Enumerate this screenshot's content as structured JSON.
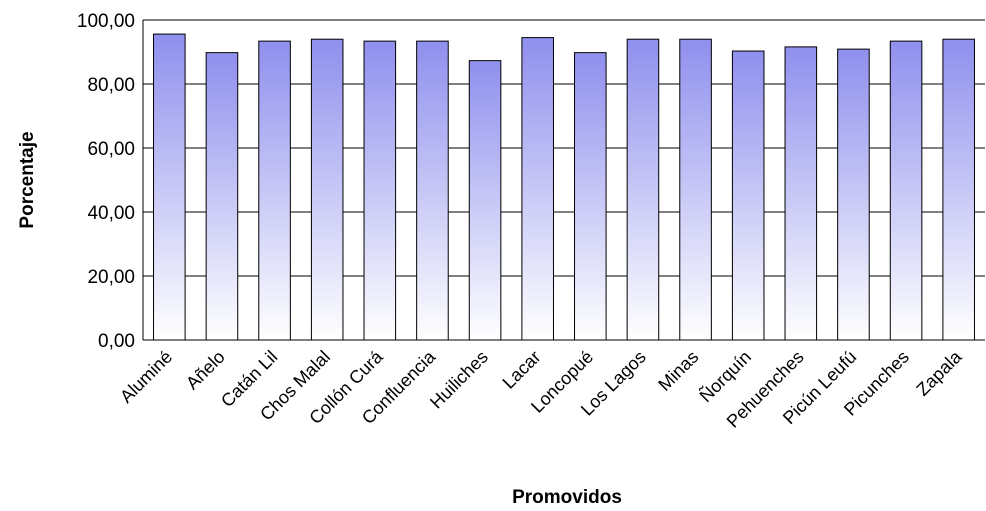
{
  "chart_data": {
    "type": "bar",
    "title": "",
    "xlabel": "Promovidos",
    "ylabel": "Porcentaje",
    "ylim": [
      0,
      100
    ],
    "yticks": [
      "0,00",
      "20,00",
      "40,00",
      "60,00",
      "80,00",
      "100,00"
    ],
    "grid": true,
    "categories": [
      "Aluminé",
      "Añelo",
      "Catán Lil",
      "Chos Malal",
      "Collón Curá",
      "Confluencia",
      "Huiliches",
      "Lacar",
      "Loncopué",
      "Los Lagos",
      "Minas",
      "Ñorquín",
      "Pehuenches",
      "Picún Leufú",
      "Picunches",
      "Zapala"
    ],
    "values": [
      95.6,
      89.8,
      93.4,
      94.0,
      93.4,
      93.4,
      87.3,
      94.5,
      89.8,
      94.0,
      94.0,
      90.3,
      91.6,
      90.9,
      93.4,
      94.0
    ],
    "colors": {
      "bar_top": "#8f8fee",
      "bar_bottom": "#ffffff",
      "bar_stroke": "#000000",
      "grid": "#000000"
    }
  }
}
